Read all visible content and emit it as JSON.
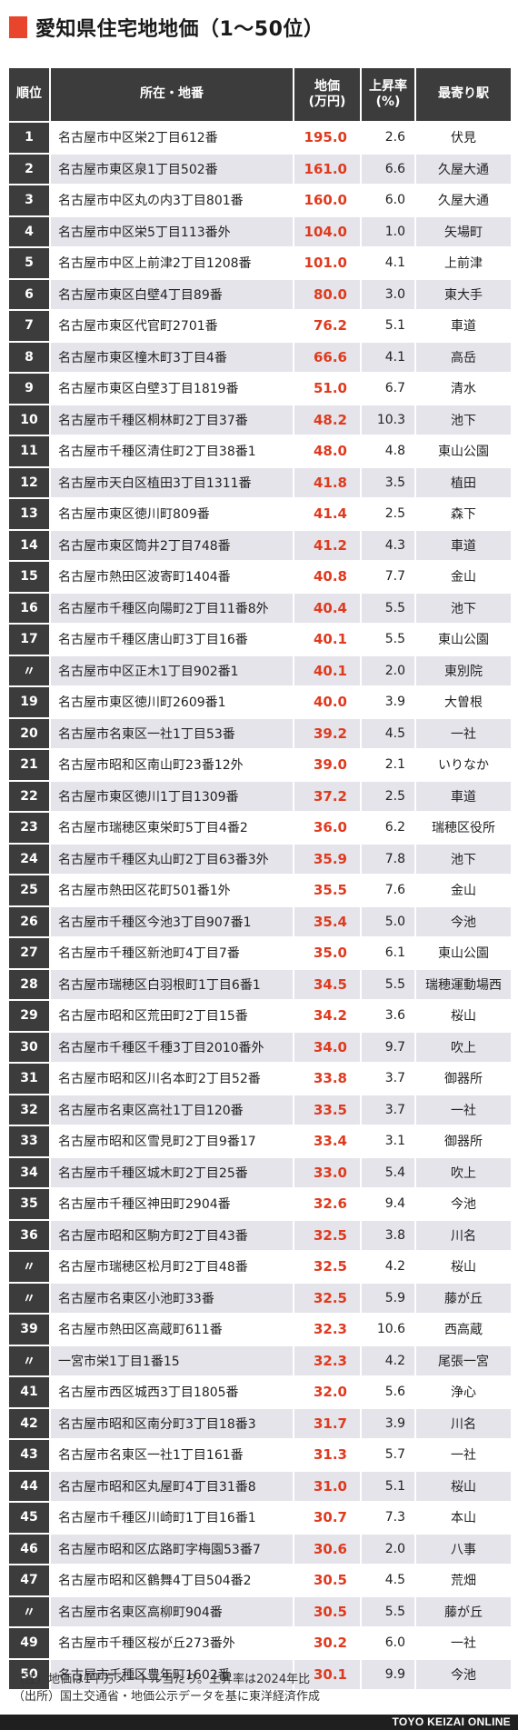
{
  "title": "愛知県住宅地地価（1〜50位）",
  "colors": {
    "accent": "#e8452c",
    "price_text": "#e03a1e",
    "header_bg": "#3c3c3c",
    "stripe": "#e4e4ea"
  },
  "columns": [
    "順位",
    "所在・地番",
    "地価\n(万円)",
    "上昇率\n(%)",
    "最寄り駅"
  ],
  "chart_data": {
    "type": "table",
    "title": "愛知県住宅地地価（1〜50位）",
    "rows": [
      {
        "rank": "1",
        "address": "名古屋市中区栄2丁目612番",
        "price": "195.0",
        "rate": "2.6",
        "station": "伏見"
      },
      {
        "rank": "2",
        "address": "名古屋市東区泉1丁目502番",
        "price": "161.0",
        "rate": "6.6",
        "station": "久屋大通"
      },
      {
        "rank": "3",
        "address": "名古屋市中区丸の内3丁目801番",
        "price": "160.0",
        "rate": "6.0",
        "station": "久屋大通"
      },
      {
        "rank": "4",
        "address": "名古屋市中区栄5丁目113番外",
        "price": "104.0",
        "rate": "1.0",
        "station": "矢場町"
      },
      {
        "rank": "5",
        "address": "名古屋市中区上前津2丁目1208番",
        "price": "101.0",
        "rate": "4.1",
        "station": "上前津"
      },
      {
        "rank": "6",
        "address": "名古屋市東区白壁4丁目89番",
        "price": "80.0",
        "rate": "3.0",
        "station": "東大手"
      },
      {
        "rank": "7",
        "address": "名古屋市東区代官町2701番",
        "price": "76.2",
        "rate": "5.1",
        "station": "車道"
      },
      {
        "rank": "8",
        "address": "名古屋市東区橦木町3丁目4番",
        "price": "66.6",
        "rate": "4.1",
        "station": "高岳"
      },
      {
        "rank": "9",
        "address": "名古屋市東区白壁3丁目1819番",
        "price": "51.0",
        "rate": "6.7",
        "station": "清水"
      },
      {
        "rank": "10",
        "address": "名古屋市千種区桐林町2丁目37番",
        "price": "48.2",
        "rate": "10.3",
        "station": "池下"
      },
      {
        "rank": "11",
        "address": "名古屋市千種区清住町2丁目38番1",
        "price": "48.0",
        "rate": "4.8",
        "station": "東山公園"
      },
      {
        "rank": "12",
        "address": "名古屋市天白区植田3丁目1311番",
        "price": "41.8",
        "rate": "3.5",
        "station": "植田"
      },
      {
        "rank": "13",
        "address": "名古屋市東区徳川町809番",
        "price": "41.4",
        "rate": "2.5",
        "station": "森下"
      },
      {
        "rank": "14",
        "address": "名古屋市東区筒井2丁目748番",
        "price": "41.2",
        "rate": "4.3",
        "station": "車道"
      },
      {
        "rank": "15",
        "address": "名古屋市熱田区波寄町1404番",
        "price": "40.8",
        "rate": "7.7",
        "station": "金山"
      },
      {
        "rank": "16",
        "address": "名古屋市千種区向陽町2丁目11番8外",
        "price": "40.4",
        "rate": "5.5",
        "station": "池下"
      },
      {
        "rank": "17",
        "address": "名古屋市千種区唐山町3丁目16番",
        "price": "40.1",
        "rate": "5.5",
        "station": "東山公園"
      },
      {
        "rank": "〃",
        "address": "名古屋市中区正木1丁目902番1",
        "price": "40.1",
        "rate": "2.0",
        "station": "東別院"
      },
      {
        "rank": "19",
        "address": "名古屋市東区徳川町2609番1",
        "price": "40.0",
        "rate": "3.9",
        "station": "大曽根"
      },
      {
        "rank": "20",
        "address": "名古屋市名東区一社1丁目53番",
        "price": "39.2",
        "rate": "4.5",
        "station": "一社"
      },
      {
        "rank": "21",
        "address": "名古屋市昭和区南山町23番12外",
        "price": "39.0",
        "rate": "2.1",
        "station": "いりなか"
      },
      {
        "rank": "22",
        "address": "名古屋市東区徳川1丁目1309番",
        "price": "37.2",
        "rate": "2.5",
        "station": "車道"
      },
      {
        "rank": "23",
        "address": "名古屋市瑞穂区東栄町5丁目4番2",
        "price": "36.0",
        "rate": "6.2",
        "station": "瑞穂区役所"
      },
      {
        "rank": "24",
        "address": "名古屋市千種区丸山町2丁目63番3外",
        "price": "35.9",
        "rate": "7.8",
        "station": "池下"
      },
      {
        "rank": "25",
        "address": "名古屋市熱田区花町501番1外",
        "price": "35.5",
        "rate": "7.6",
        "station": "金山"
      },
      {
        "rank": "26",
        "address": "名古屋市千種区今池3丁目907番1",
        "price": "35.4",
        "rate": "5.0",
        "station": "今池"
      },
      {
        "rank": "27",
        "address": "名古屋市千種区新池町4丁目7番",
        "price": "35.0",
        "rate": "6.1",
        "station": "東山公園"
      },
      {
        "rank": "28",
        "address": "名古屋市瑞穂区白羽根町1丁目6番1",
        "price": "34.5",
        "rate": "5.5",
        "station": "瑞穂運動場西"
      },
      {
        "rank": "29",
        "address": "名古屋市昭和区荒田町2丁目15番",
        "price": "34.2",
        "rate": "3.6",
        "station": "桜山"
      },
      {
        "rank": "30",
        "address": "名古屋市千種区千種3丁目2010番外",
        "price": "34.0",
        "rate": "9.7",
        "station": "吹上"
      },
      {
        "rank": "31",
        "address": "名古屋市昭和区川名本町2丁目52番",
        "price": "33.8",
        "rate": "3.7",
        "station": "御器所"
      },
      {
        "rank": "32",
        "address": "名古屋市名東区高社1丁目120番",
        "price": "33.5",
        "rate": "3.7",
        "station": "一社"
      },
      {
        "rank": "33",
        "address": "名古屋市昭和区雪見町2丁目9番17",
        "price": "33.4",
        "rate": "3.1",
        "station": "御器所"
      },
      {
        "rank": "34",
        "address": "名古屋市千種区城木町2丁目25番",
        "price": "33.0",
        "rate": "5.4",
        "station": "吹上"
      },
      {
        "rank": "35",
        "address": "名古屋市千種区神田町2904番",
        "price": "32.6",
        "rate": "9.4",
        "station": "今池"
      },
      {
        "rank": "36",
        "address": "名古屋市昭和区駒方町2丁目43番",
        "price": "32.5",
        "rate": "3.8",
        "station": "川名"
      },
      {
        "rank": "〃",
        "address": "名古屋市瑞穂区松月町2丁目48番",
        "price": "32.5",
        "rate": "4.2",
        "station": "桜山"
      },
      {
        "rank": "〃",
        "address": "名古屋市名東区小池町33番",
        "price": "32.5",
        "rate": "5.9",
        "station": "藤が丘"
      },
      {
        "rank": "39",
        "address": "名古屋市熱田区高蔵町611番",
        "price": "32.3",
        "rate": "10.6",
        "station": "西高蔵"
      },
      {
        "rank": "〃",
        "address": "一宮市栄1丁目1番15",
        "price": "32.3",
        "rate": "4.2",
        "station": "尾張一宮"
      },
      {
        "rank": "41",
        "address": "名古屋市西区城西3丁目1805番",
        "price": "32.0",
        "rate": "5.6",
        "station": "浄心"
      },
      {
        "rank": "42",
        "address": "名古屋市昭和区南分町3丁目18番3",
        "price": "31.7",
        "rate": "3.9",
        "station": "川名"
      },
      {
        "rank": "43",
        "address": "名古屋市名東区一社1丁目161番",
        "price": "31.3",
        "rate": "5.7",
        "station": "一社"
      },
      {
        "rank": "44",
        "address": "名古屋市昭和区丸屋町4丁目31番8",
        "price": "31.0",
        "rate": "5.1",
        "station": "桜山"
      },
      {
        "rank": "45",
        "address": "名古屋市千種区川崎町1丁目16番1",
        "price": "30.7",
        "rate": "7.3",
        "station": "本山"
      },
      {
        "rank": "46",
        "address": "名古屋市昭和区広路町字梅園53番7",
        "price": "30.6",
        "rate": "2.0",
        "station": "八事"
      },
      {
        "rank": "47",
        "address": "名古屋市昭和区鶴舞4丁目504番2",
        "price": "30.5",
        "rate": "4.5",
        "station": "荒畑"
      },
      {
        "rank": "〃",
        "address": "名古屋市名東区高柳町904番",
        "price": "30.5",
        "rate": "5.5",
        "station": "藤が丘"
      },
      {
        "rank": "49",
        "address": "名古屋市千種区桜が丘273番外",
        "price": "30.2",
        "rate": "6.0",
        "station": "一社"
      },
      {
        "rank": "50",
        "address": "名古屋市千種区豊年町1602番",
        "price": "30.1",
        "rate": "9.9",
        "station": "今池"
      }
    ]
  },
  "notes": [
    "（注）地価は1平方メートル当たり。上昇率は2024年比",
    "（出所）国土交通省・地価公示データを基に東洋経済作成"
  ],
  "brand": "TOYO KEIZAI ONLINE"
}
